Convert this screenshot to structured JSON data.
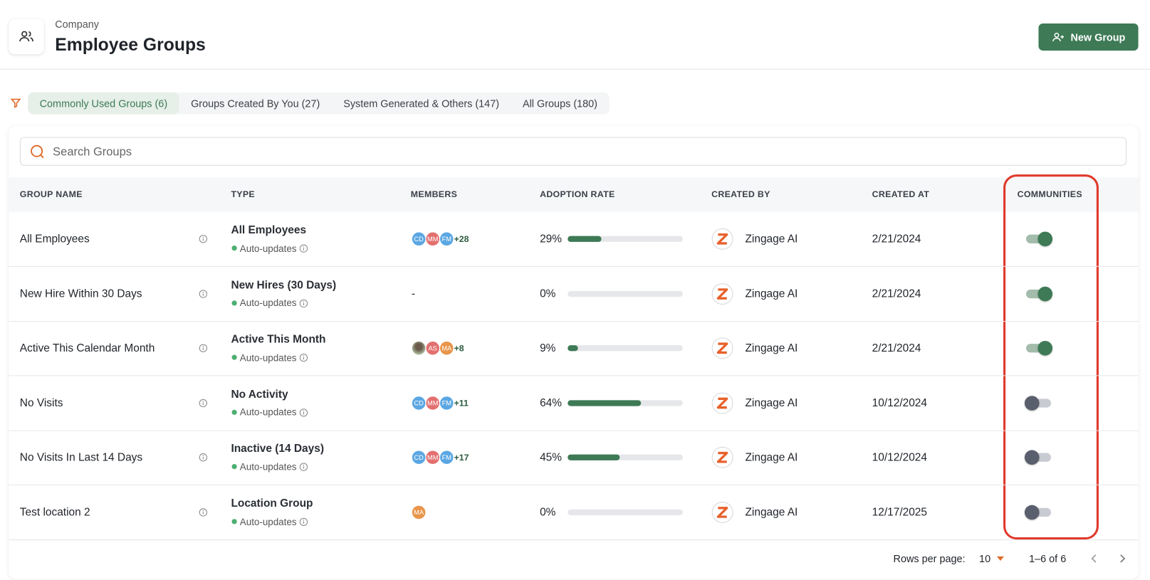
{
  "header": {
    "breadcrumb": "Company",
    "title": "Employee Groups",
    "new_group_button": "New Group"
  },
  "tabs": [
    {
      "label": "Commonly Used Groups (6)",
      "active": true
    },
    {
      "label": "Groups Created By You (27)",
      "active": false
    },
    {
      "label": "System Generated & Others (147)",
      "active": false
    },
    {
      "label": "All Groups (180)",
      "active": false
    }
  ],
  "search_placeholder": "Search Groups",
  "table": {
    "columns": [
      "GROUP NAME",
      "TYPE",
      "MEMBERS",
      "ADOPTION RATE",
      "CREATED BY",
      "CREATED AT",
      "COMMUNITIES"
    ],
    "rows": [
      {
        "group_name": "All Employees",
        "type": "All Employees",
        "update_mode": "Auto-updates",
        "members": [
          {
            "initials": "CD",
            "color": "#5ba7e3"
          },
          {
            "initials": "MM",
            "color": "#e36f6f"
          },
          {
            "initials": "FM",
            "color": "#5ba7e3"
          }
        ],
        "members_more": "+28",
        "adoption_rate": {
          "value": 29,
          "label": "29%"
        },
        "created_by": "Zingage AI",
        "created_at": "2/21/2024",
        "communities": true
      },
      {
        "group_name": "New Hire Within 30 Days",
        "type": "New Hires (30 Days)",
        "update_mode": "Auto-updates",
        "members_placeholder": "-",
        "adoption_rate": {
          "value": 0,
          "label": "0%"
        },
        "created_by": "Zingage AI",
        "created_at": "2/21/2024",
        "communities": true
      },
      {
        "group_name": "Active This Calendar Month",
        "type": "Active This Month",
        "update_mode": "Auto-updates",
        "photo_avatar": true,
        "members": [
          {
            "initials": "AS",
            "color": "#e36f6f"
          },
          {
            "initials": "MA",
            "color": "#e8954a"
          }
        ],
        "members_more": "+8",
        "adoption_rate": {
          "value": 9,
          "label": "9%"
        },
        "created_by": "Zingage AI",
        "created_at": "2/21/2024",
        "communities": true
      },
      {
        "group_name": "No Visits",
        "type": "No Activity",
        "update_mode": "Auto-updates",
        "members": [
          {
            "initials": "CD",
            "color": "#5ba7e3"
          },
          {
            "initials": "MM",
            "color": "#e36f6f"
          },
          {
            "initials": "FM",
            "color": "#5ba7e3"
          }
        ],
        "members_more": "+11",
        "adoption_rate": {
          "value": 64,
          "label": "64%"
        },
        "created_by": "Zingage AI",
        "created_at": "10/12/2024",
        "communities": false
      },
      {
        "group_name": "No Visits In Last 14 Days",
        "type": "Inactive (14 Days)",
        "update_mode": "Auto-updates",
        "members": [
          {
            "initials": "CD",
            "color": "#5ba7e3"
          },
          {
            "initials": "MM",
            "color": "#e36f6f"
          },
          {
            "initials": "FM",
            "color": "#5ba7e3"
          }
        ],
        "members_more": "+17",
        "adoption_rate": {
          "value": 45,
          "label": "45%"
        },
        "created_by": "Zingage AI",
        "created_at": "10/12/2024",
        "communities": false
      },
      {
        "group_name": "Test location 2",
        "type": "Location Group",
        "update_mode": "Auto-updates",
        "members": [
          {
            "initials": "MA",
            "color": "#e8954a"
          }
        ],
        "adoption_rate": {
          "value": 0,
          "label": "0%"
        },
        "created_by": "Zingage AI",
        "created_at": "12/17/2025",
        "communities": false
      }
    ]
  },
  "pagination": {
    "rows_per_page_label": "Rows per page:",
    "rows_per_page": "10",
    "range": "1–6 of 6"
  }
}
